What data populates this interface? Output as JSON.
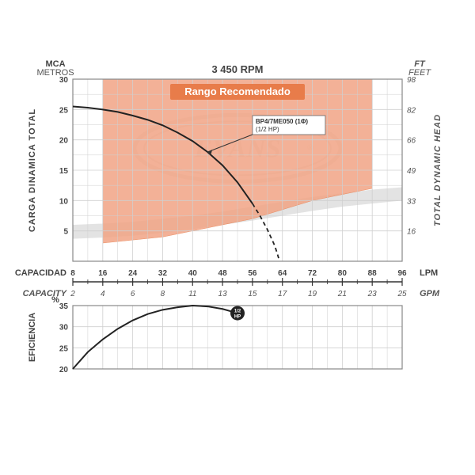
{
  "title": "3 450 RPM",
  "banner": "Rango Recomendado",
  "left_axis": {
    "top": "MCA",
    "sub": "METROS",
    "side": "CARGA  DINAMICA  TOTAL"
  },
  "right_axis": {
    "top": "FT",
    "sub": "FEET",
    "side": "TOTAL  DYNAMIC  HEAD"
  },
  "bottom_axis": {
    "cap_es": "CAPACIDAD",
    "cap_es_unit": "LPM",
    "cap_en": "CAPACITY",
    "cap_en_unit": "GPM",
    "eff_es": "EFICIENCIA",
    "eff_pct": "%"
  },
  "callout": {
    "line1": "BP4/7ME050 (1Φ)",
    "line2": "(1/2 HP)"
  },
  "watermark": "EVANS",
  "colors": {
    "grid": "#cfcfcf",
    "border": "#888888",
    "recommended_fill": "#f2a485",
    "recommended_border": "#e87c4a",
    "gray_region": "#d7d7d7",
    "curve": "#222222",
    "banner_bg": "#e87c4a",
    "watermark": "#d9d9d9",
    "text": "#444444"
  },
  "main_chart": {
    "xlim": [
      8,
      96
    ],
    "ylim": [
      0,
      30
    ],
    "xticks": [
      8,
      16,
      24,
      32,
      40,
      48,
      56,
      64,
      72,
      80,
      88,
      96
    ],
    "yticks_left": [
      5,
      10,
      15,
      20,
      25,
      30
    ],
    "yticks_right": [
      16,
      33,
      49,
      66,
      82,
      98
    ],
    "y_right_pos": [
      5,
      10,
      15,
      20,
      25,
      30
    ],
    "recommended_poly": [
      [
        16,
        30
      ],
      [
        88,
        30
      ],
      [
        88,
        12
      ],
      [
        80,
        11
      ],
      [
        72,
        10
      ],
      [
        64,
        8.5
      ],
      [
        56,
        7
      ],
      [
        48,
        6
      ],
      [
        40,
        5
      ],
      [
        32,
        4
      ],
      [
        24,
        3.5
      ],
      [
        16,
        3
      ]
    ],
    "gray_poly": [
      [
        8,
        6
      ],
      [
        16,
        6.2
      ],
      [
        24,
        6.5
      ],
      [
        32,
        7
      ],
      [
        40,
        7.5
      ],
      [
        48,
        8.2
      ],
      [
        56,
        9
      ],
      [
        64,
        9.8
      ],
      [
        72,
        10.6
      ],
      [
        80,
        11.2
      ],
      [
        88,
        11.8
      ],
      [
        96,
        12.2
      ],
      [
        96,
        10
      ],
      [
        88,
        9.5
      ],
      [
        80,
        9
      ],
      [
        72,
        8.3
      ],
      [
        64,
        7.5
      ],
      [
        56,
        6.7
      ],
      [
        48,
        6
      ],
      [
        40,
        5.3
      ],
      [
        32,
        4.7
      ],
      [
        24,
        4.2
      ],
      [
        16,
        3.9
      ],
      [
        8,
        3.7
      ]
    ],
    "curve_solid": [
      [
        8,
        25.5
      ],
      [
        12,
        25.3
      ],
      [
        16,
        25
      ],
      [
        20,
        24.6
      ],
      [
        24,
        24
      ],
      [
        28,
        23.3
      ],
      [
        32,
        22.4
      ],
      [
        36,
        21.2
      ],
      [
        40,
        19.8
      ],
      [
        44,
        18
      ],
      [
        48,
        15.8
      ],
      [
        52,
        13
      ],
      [
        56,
        9.5
      ]
    ],
    "curve_dash": [
      [
        56,
        9.5
      ],
      [
        58,
        7.5
      ],
      [
        60,
        5.2
      ],
      [
        62,
        2.5
      ],
      [
        63,
        0.5
      ]
    ],
    "callout_anchor": [
      44,
      18
    ],
    "callout_box": [
      56,
      24
    ]
  },
  "gpm_ticks": {
    "values": [
      2,
      4,
      6,
      8,
      11,
      13,
      15,
      17,
      19,
      21,
      23,
      25
    ],
    "positions": [
      8,
      16,
      24,
      32,
      40,
      48,
      56,
      64,
      72,
      80,
      88,
      96
    ]
  },
  "eff_chart": {
    "xlim": [
      8,
      96
    ],
    "ylim": [
      20,
      35
    ],
    "yticks": [
      20,
      25,
      30,
      35
    ],
    "curve": [
      [
        8,
        20
      ],
      [
        12,
        24
      ],
      [
        16,
        27
      ],
      [
        20,
        29.5
      ],
      [
        24,
        31.5
      ],
      [
        28,
        33
      ],
      [
        32,
        34
      ],
      [
        36,
        34.6
      ],
      [
        40,
        35
      ],
      [
        44,
        34.8
      ],
      [
        48,
        34.2
      ],
      [
        52,
        33.2
      ]
    ],
    "endpoint_label": "1/2\nHP",
    "endpoint": [
      52,
      33.2
    ]
  }
}
